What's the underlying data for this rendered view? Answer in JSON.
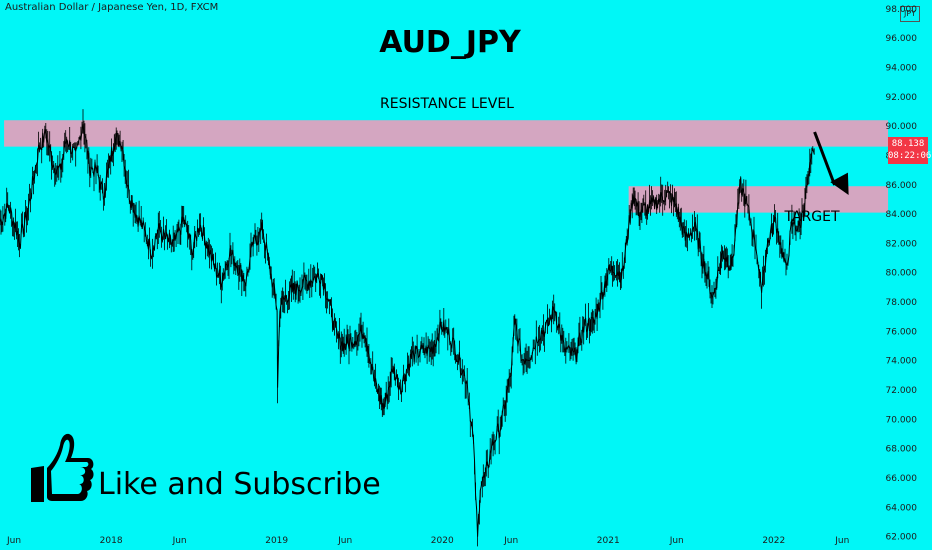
{
  "header": {
    "symbol_line": "Australian Dollar / Japanese Yen, 1D, FXCM"
  },
  "currency_badge": "JPY",
  "current_price": {
    "price": "88.138",
    "countdown": "08:22:06",
    "color": "#f23645"
  },
  "colors": {
    "background": "#00f7f7",
    "zone": "#d4a6c1",
    "candle": "#000000"
  },
  "like_text": "Like and Subscribe",
  "chart_data": {
    "type": "line",
    "title": "AUD_JPY",
    "y_axis": {
      "ticks": [
        "62.000",
        "64.000",
        "66.000",
        "68.000",
        "70.000",
        "72.000",
        "74.000",
        "76.000",
        "78.000",
        "80.000",
        "82.000",
        "84.000",
        "86.000",
        "88.000",
        "90.000",
        "92.000",
        "94.000",
        "96.000",
        "98.000"
      ],
      "range": [
        61.5,
        98.6
      ],
      "position": "right"
    },
    "x_axis": {
      "ticks": [
        "Jun",
        "2018",
        "Jun",
        "2019",
        "Jun",
        "2020",
        "Jun",
        "2021",
        "Jun",
        "2022",
        "Jun"
      ],
      "range": [
        "2017-05",
        "2022-09"
      ]
    },
    "series": [
      {
        "values": [
          [
            "2017-05-01",
            83.5
          ],
          [
            "2017-05-20",
            84.5
          ],
          [
            "2017-06-15",
            82.2
          ],
          [
            "2017-07-05",
            84.8
          ],
          [
            "2017-07-25",
            88.4
          ],
          [
            "2017-08-10",
            89.5
          ],
          [
            "2017-08-25",
            87.5
          ],
          [
            "2017-09-10",
            86.9
          ],
          [
            "2017-09-25",
            89.2
          ],
          [
            "2017-10-15",
            87.8
          ],
          [
            "2017-10-31",
            90.3
          ],
          [
            "2017-11-15",
            87.2
          ],
          [
            "2017-12-01",
            86.9
          ],
          [
            "2017-12-15",
            85.3
          ],
          [
            "2017-12-31",
            87.9
          ],
          [
            "2018-01-10",
            89.2
          ],
          [
            "2018-01-25",
            88.9
          ],
          [
            "2018-02-08",
            85.6
          ],
          [
            "2018-02-25",
            84.0
          ],
          [
            "2018-03-15",
            82.9
          ],
          [
            "2018-03-31",
            81.5
          ],
          [
            "2018-04-15",
            83.0
          ],
          [
            "2018-05-01",
            82.3
          ],
          [
            "2018-05-20",
            81.9
          ],
          [
            "2018-06-10",
            83.6
          ],
          [
            "2018-06-30",
            81.5
          ],
          [
            "2018-07-15",
            83.4
          ],
          [
            "2018-08-01",
            82.0
          ],
          [
            "2018-08-15",
            80.5
          ],
          [
            "2018-09-01",
            79.5
          ],
          [
            "2018-09-20",
            81.4
          ],
          [
            "2018-10-05",
            80.6
          ],
          [
            "2018-10-25",
            79.4
          ],
          [
            "2018-11-10",
            81.9
          ],
          [
            "2018-12-01",
            83.0
          ],
          [
            "2018-12-20",
            79.8
          ],
          [
            "2019-01-02",
            77.6
          ],
          [
            "2019-01-03",
            72.1
          ],
          [
            "2019-01-08",
            77.8
          ],
          [
            "2019-01-25",
            78.5
          ],
          [
            "2019-02-15",
            79.0
          ],
          [
            "2019-03-15",
            79.5
          ],
          [
            "2019-04-10",
            79.9
          ],
          [
            "2019-04-25",
            78.2
          ],
          [
            "2019-05-15",
            75.5
          ],
          [
            "2019-06-01",
            75.0
          ],
          [
            "2019-06-20",
            75.5
          ],
          [
            "2019-07-15",
            76.1
          ],
          [
            "2019-08-05",
            72.5
          ],
          [
            "2019-08-26",
            70.8
          ],
          [
            "2019-09-15",
            73.5
          ],
          [
            "2019-10-01",
            72.2
          ],
          [
            "2019-10-25",
            74.3
          ],
          [
            "2019-11-15",
            74.6
          ],
          [
            "2019-12-10",
            74.8
          ],
          [
            "2019-12-31",
            76.4
          ],
          [
            "2020-01-20",
            75.6
          ],
          [
            "2020-02-10",
            73.8
          ],
          [
            "2020-02-25",
            72.6
          ],
          [
            "2020-03-10",
            68.3
          ],
          [
            "2020-03-19",
            61.8
          ],
          [
            "2020-03-25",
            65.6
          ],
          [
            "2020-04-05",
            66.0
          ],
          [
            "2020-04-20",
            68.3
          ],
          [
            "2020-05-10",
            69.6
          ],
          [
            "2020-06-01",
            73.2
          ],
          [
            "2020-06-09",
            76.6
          ],
          [
            "2020-06-25",
            74.1
          ],
          [
            "2020-07-15",
            74.5
          ],
          [
            "2020-07-31",
            75.8
          ],
          [
            "2020-08-20",
            76.3
          ],
          [
            "2020-09-05",
            77.6
          ],
          [
            "2020-09-25",
            74.8
          ],
          [
            "2020-10-20",
            74.3
          ],
          [
            "2020-11-10",
            76.4
          ],
          [
            "2020-12-01",
            76.6
          ],
          [
            "2020-12-31",
            80.0
          ],
          [
            "2021-01-15",
            80.3
          ],
          [
            "2021-02-01",
            79.8
          ],
          [
            "2021-02-25",
            85.4
          ],
          [
            "2021-03-10",
            84.2
          ],
          [
            "2021-03-31",
            84.4
          ],
          [
            "2021-04-20",
            84.9
          ],
          [
            "2021-05-10",
            85.4
          ],
          [
            "2021-05-31",
            84.6
          ],
          [
            "2021-06-20",
            82.3
          ],
          [
            "2021-07-10",
            83.2
          ],
          [
            "2021-07-31",
            80.6
          ],
          [
            "2021-08-20",
            78.3
          ],
          [
            "2021-09-10",
            81.4
          ],
          [
            "2021-10-01",
            80.5
          ],
          [
            "2021-10-20",
            86.0
          ],
          [
            "2021-11-05",
            84.3
          ],
          [
            "2021-11-25",
            81.5
          ],
          [
            "2021-12-03",
            78.8
          ],
          [
            "2021-12-20",
            82.2
          ],
          [
            "2022-01-05",
            83.6
          ],
          [
            "2022-01-28",
            80.1
          ],
          [
            "2022-02-10",
            83.3
          ],
          [
            "2022-02-28",
            83.1
          ],
          [
            "2022-03-15",
            85.9
          ],
          [
            "2022-03-28",
            88.1
          ],
          [
            "2022-03-31",
            88.1
          ]
        ]
      }
    ]
  },
  "annotations": {
    "resistance_label": "RESISTANCE LEVEL",
    "target_label": "TARGET",
    "resistance_zone": [
      88.6,
      90.4
    ],
    "target_zone": [
      84.1,
      85.9
    ],
    "resistance_zone_x": [
      "2017-05-10",
      "2022-09-10"
    ],
    "target_zone_x": [
      "2021-02-15",
      "2022-09-10"
    ],
    "arrow_from": [
      "2022-04-01",
      89.6
    ],
    "arrow_to": [
      "2022-06-15",
      85.3
    ]
  }
}
